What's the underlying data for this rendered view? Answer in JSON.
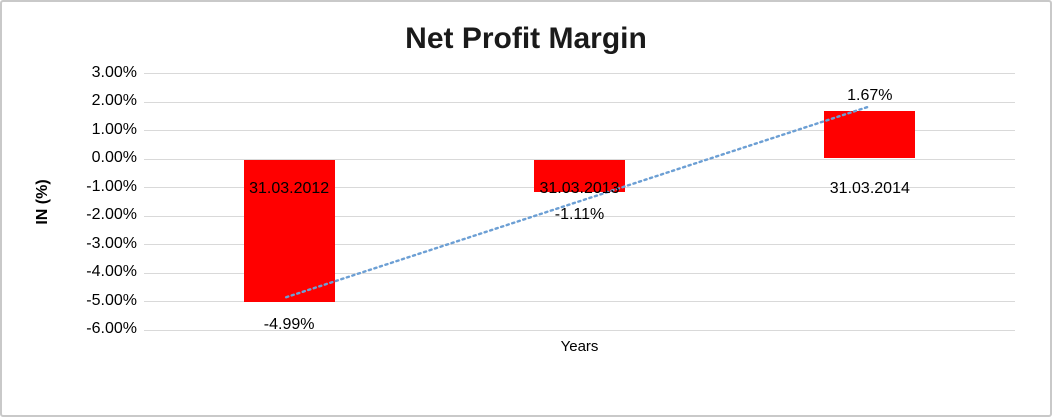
{
  "chart_data": {
    "type": "bar",
    "title": "Net Profit Margin",
    "xlabel": "Years",
    "ylabel": "IN (%)",
    "categories": [
      "31.03.2012",
      "31.03.2013",
      "31.03.2014"
    ],
    "values": [
      -4.99,
      -1.11,
      1.67
    ],
    "data_labels": [
      "-4.99%",
      "-1.11%",
      "1.67%"
    ],
    "yticks": [
      3,
      2,
      1,
      0,
      -1,
      -2,
      -3,
      -4,
      -5,
      -6
    ],
    "ytick_labels": [
      "3.00%",
      "2.00%",
      "1.00%",
      "0.00%",
      "-1.00%",
      "-2.00%",
      "-3.00%",
      "-4.00%",
      "-5.00%",
      "-6.00%"
    ],
    "ylim": [
      -6,
      3
    ],
    "grid": true,
    "legend_position": "none",
    "bar_color": "#ff0000",
    "gridline_color": "#d9d9d9",
    "label_color": "#000000",
    "trendline": {
      "type": "linear",
      "style": "dotted",
      "color": "#6c9fd4",
      "start": {
        "category_index": 0,
        "value": -4.85
      },
      "end": {
        "category_index": 2,
        "value": 1.85
      }
    }
  },
  "frame": {
    "background": "#ffffff",
    "border_color": "#c9c9c9"
  }
}
